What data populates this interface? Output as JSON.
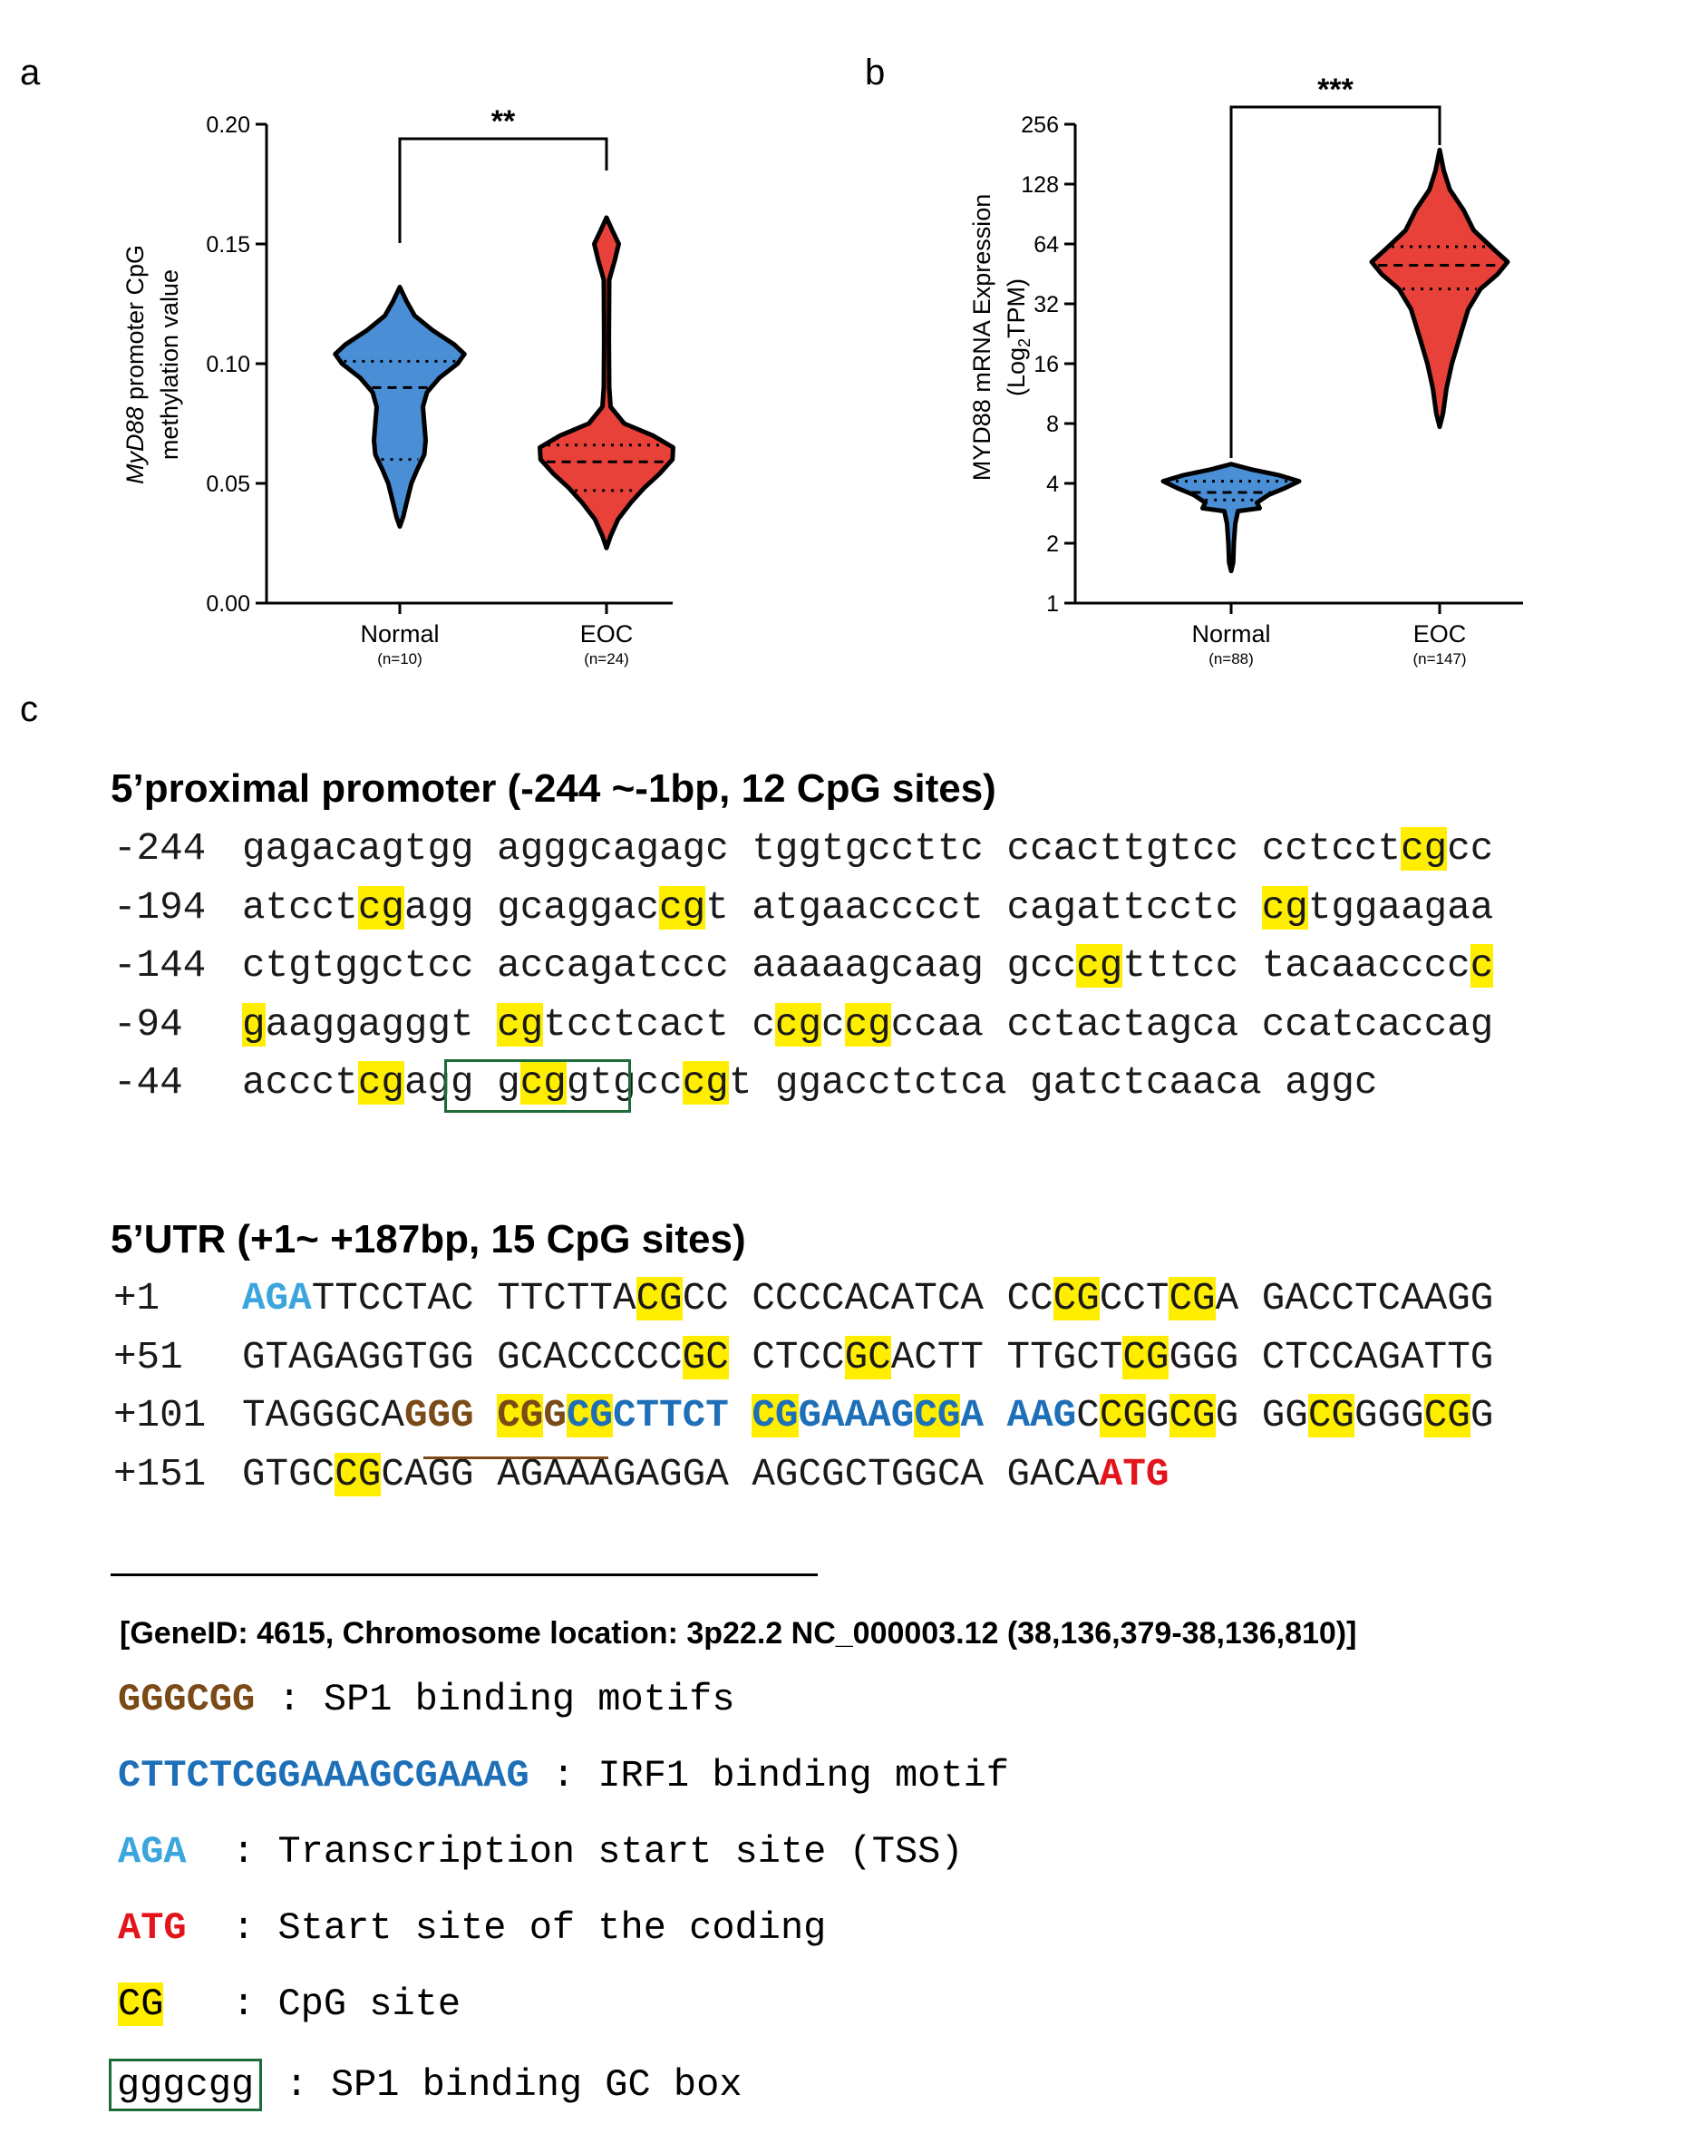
{
  "panels": {
    "a": "a",
    "b": "b",
    "c": "c"
  },
  "chart_data": [
    {
      "type": "violin",
      "panel": "a",
      "ylabel_italic": "MyD88",
      "ylabel_rest": " promoter CpG",
      "ylabel_line2": "methylation value",
      "ylim": [
        0,
        0.2
      ],
      "yticks": [
        "0.00",
        "0.05",
        "0.10",
        "0.15",
        "0.20"
      ],
      "ytick_values": [
        0,
        0.05,
        0.1,
        0.15,
        0.2
      ],
      "categories": [
        "Normal",
        "EOC"
      ],
      "n_labels": [
        "(n=10)",
        "(n=24)"
      ],
      "colors": [
        "#4a8fd6",
        "#e8413a"
      ],
      "series": [
        {
          "name": "Normal",
          "min": 0.032,
          "max": 0.132,
          "median": 0.09,
          "q1": 0.06,
          "q3": 0.101,
          "profile": [
            [
              0.032,
              0.0
            ],
            [
              0.036,
              0.05
            ],
            [
              0.042,
              0.1
            ],
            [
              0.05,
              0.17
            ],
            [
              0.056,
              0.26
            ],
            [
              0.062,
              0.36
            ],
            [
              0.068,
              0.38
            ],
            [
              0.075,
              0.36
            ],
            [
              0.082,
              0.34
            ],
            [
              0.088,
              0.4
            ],
            [
              0.094,
              0.58
            ],
            [
              0.1,
              0.85
            ],
            [
              0.104,
              0.95
            ],
            [
              0.108,
              0.8
            ],
            [
              0.114,
              0.48
            ],
            [
              0.12,
              0.22
            ],
            [
              0.126,
              0.1
            ],
            [
              0.132,
              0.0
            ]
          ]
        },
        {
          "name": "EOC",
          "min": 0.023,
          "max": 0.161,
          "median": 0.059,
          "q1": 0.047,
          "q3": 0.066,
          "profile": [
            [
              0.023,
              0.0
            ],
            [
              0.028,
              0.06
            ],
            [
              0.035,
              0.17
            ],
            [
              0.042,
              0.36
            ],
            [
              0.048,
              0.55
            ],
            [
              0.054,
              0.78
            ],
            [
              0.06,
              0.97
            ],
            [
              0.065,
              0.98
            ],
            [
              0.07,
              0.68
            ],
            [
              0.075,
              0.26
            ],
            [
              0.082,
              0.06
            ],
            [
              0.09,
              0.04
            ],
            [
              0.11,
              0.035
            ],
            [
              0.135,
              0.04
            ],
            [
              0.143,
              0.12
            ],
            [
              0.15,
              0.18
            ],
            [
              0.156,
              0.08
            ],
            [
              0.161,
              0.0
            ]
          ]
        }
      ],
      "significance": "**"
    },
    {
      "type": "violin",
      "panel": "b",
      "ylabel_line1": "MYD88 mRNA Expression",
      "ylabel_log": "(Log",
      "ylabel_sub": "2",
      "ylabel_tail": "TPM)",
      "scale": "log2",
      "ylim": [
        1,
        256
      ],
      "yticks": [
        "1",
        "2",
        "4",
        "8",
        "16",
        "32",
        "64",
        "128",
        "256"
      ],
      "ytick_values": [
        1,
        2,
        4,
        8,
        16,
        32,
        64,
        128,
        256
      ],
      "categories": [
        "Normal",
        "EOC"
      ],
      "n_labels": [
        "(n=88)",
        "(n=147)"
      ],
      "colors": [
        "#4a8fd6",
        "#e8413a"
      ],
      "series": [
        {
          "name": "Normal",
          "min": 1.45,
          "max": 5.0,
          "median": 3.6,
          "q1": 3.3,
          "q3": 4.1,
          "profile": [
            [
              1.45,
              0.0
            ],
            [
              1.6,
              0.03
            ],
            [
              2.0,
              0.04
            ],
            [
              2.5,
              0.06
            ],
            [
              2.9,
              0.1
            ],
            [
              3.0,
              0.42
            ],
            [
              3.2,
              0.38
            ],
            [
              3.5,
              0.55
            ],
            [
              3.8,
              0.8
            ],
            [
              4.1,
              1.0
            ],
            [
              4.4,
              0.7
            ],
            [
              4.7,
              0.3
            ],
            [
              5.0,
              0.0
            ]
          ]
        },
        {
          "name": "EOC",
          "min": 7.7,
          "max": 190,
          "median": 50,
          "q1": 38,
          "q3": 62,
          "profile": [
            [
              7.7,
              0.0
            ],
            [
              9,
              0.05
            ],
            [
              12,
              0.1
            ],
            [
              16,
              0.18
            ],
            [
              22,
              0.3
            ],
            [
              30,
              0.42
            ],
            [
              38,
              0.6
            ],
            [
              45,
              0.85
            ],
            [
              52,
              1.0
            ],
            [
              60,
              0.8
            ],
            [
              75,
              0.5
            ],
            [
              95,
              0.35
            ],
            [
              120,
              0.15
            ],
            [
              150,
              0.06
            ],
            [
              190,
              0.0
            ]
          ]
        }
      ],
      "significance": "***"
    }
  ],
  "promoter": {
    "title": "5’proximal promoter (-244 ~-1bp, 12 CpG sites)",
    "rows": [
      {
        "pos": "-244",
        "blocks": [
          [
            [
              "gagacagtgg",
              ""
            ]
          ],
          [
            [
              "agggcagagc",
              ""
            ]
          ],
          [
            [
              "tggtgccttc",
              ""
            ]
          ],
          [
            [
              "ccacttgtcc",
              ""
            ]
          ],
          [
            [
              "cctcct",
              ""
            ],
            [
              "cg",
              "hl"
            ],
            [
              "cc",
              ""
            ]
          ]
        ]
      },
      {
        "pos": "-194",
        "blocks": [
          [
            [
              "atcct",
              ""
            ],
            [
              "cg",
              "hl"
            ],
            [
              "agg",
              ""
            ]
          ],
          [
            [
              "gcaggac",
              ""
            ],
            [
              "cg",
              "hl"
            ],
            [
              "t",
              ""
            ]
          ],
          [
            [
              "atgaacccct",
              ""
            ]
          ],
          [
            [
              "cagattcctc",
              ""
            ]
          ],
          [
            [
              "cg",
              "hl"
            ],
            [
              "tggaagaa",
              ""
            ]
          ]
        ]
      },
      {
        "pos": "-144",
        "blocks": [
          [
            [
              "ctgtggctcc",
              ""
            ]
          ],
          [
            [
              "accagatccc",
              ""
            ]
          ],
          [
            [
              "aaaaagcaag",
              ""
            ]
          ],
          [
            [
              "gcc",
              ""
            ],
            [
              "cg",
              "hl"
            ],
            [
              "tttcc",
              ""
            ]
          ],
          [
            [
              "tacaacccc",
              ""
            ],
            [
              "c",
              "hl"
            ]
          ]
        ]
      },
      {
        "pos": "-94",
        "blocks": [
          [
            [
              "g",
              "hl"
            ],
            [
              "aaggagggt",
              ""
            ]
          ],
          [
            [
              "cg",
              "hl"
            ],
            [
              "tcctcact",
              ""
            ]
          ],
          [
            [
              "c",
              ""
            ],
            [
              "cg",
              "hl"
            ],
            [
              "c",
              ""
            ],
            [
              "cg",
              "hl"
            ],
            [
              "ccaa",
              ""
            ]
          ],
          [
            [
              "cctactagca",
              ""
            ]
          ],
          [
            [
              "ccatcaccag",
              ""
            ]
          ]
        ]
      },
      {
        "pos": "-44",
        "blocks": [
          [
            [
              "accct",
              ""
            ],
            [
              "cg",
              "hl"
            ],
            [
              "agg",
              ""
            ]
          ],
          [
            [
              "g",
              ""
            ],
            [
              "cg",
              "hl"
            ],
            [
              "gtgcc",
              ""
            ],
            [
              "cg",
              "hl"
            ],
            [
              "t",
              ""
            ]
          ],
          [
            [
              "ggacctctca",
              ""
            ]
          ],
          [
            [
              "gatctcaaca",
              ""
            ]
          ],
          [
            [
              "aggc",
              ""
            ]
          ]
        ]
      }
    ]
  },
  "utr": {
    "title": "5’UTR (+1~ +187bp, 15 CpG sites)",
    "rows": [
      {
        "pos": "+1",
        "blocks": [
          [
            [
              "AGA",
              "tss"
            ],
            [
              "TTCCTAC",
              ""
            ]
          ],
          [
            [
              "TTCTTA",
              ""
            ],
            [
              "CG",
              "hl"
            ],
            [
              "CC",
              ""
            ]
          ],
          [
            [
              "CCCCACATCA",
              ""
            ]
          ],
          [
            [
              "CC",
              ""
            ],
            [
              "CG",
              "hl"
            ],
            [
              "CCT",
              ""
            ],
            [
              "CG",
              "hl"
            ],
            [
              "A",
              ""
            ]
          ],
          [
            [
              "GACCTCAAGG",
              ""
            ]
          ]
        ]
      },
      {
        "pos": "+51",
        "blocks": [
          [
            [
              "GTAGAGGTGG",
              ""
            ]
          ],
          [
            [
              "GCACCCCC",
              ""
            ],
            [
              "GC",
              "hl"
            ]
          ],
          [
            [
              "CTCC",
              ""
            ],
            [
              "GC",
              "hl"
            ],
            [
              "ACTT",
              ""
            ]
          ],
          [
            [
              "TTGCT",
              ""
            ],
            [
              "CG",
              "hl"
            ],
            [
              "GGG",
              ""
            ]
          ],
          [
            [
              "CTCCAGATTG",
              ""
            ]
          ]
        ]
      },
      {
        "pos": "+101",
        "blocks": [
          [
            [
              "TAGGGCA",
              ""
            ],
            [
              "GGG",
              "sp1"
            ]
          ],
          [
            [
              "CG",
              "sp1 hl"
            ],
            [
              "G",
              "sp1"
            ],
            [
              "CG",
              "hl b irf"
            ],
            [
              "CTTCT",
              "irf"
            ]
          ],
          [
            [
              "CG",
              "irf hl"
            ],
            [
              "GAAAG",
              "irf"
            ],
            [
              "CG",
              "irf hl"
            ],
            [
              "A",
              "irf"
            ]
          ],
          [
            [
              "AAG",
              "irf"
            ],
            [
              "C",
              ""
            ],
            [
              "CG",
              "hl"
            ],
            [
              "G",
              ""
            ],
            [
              "CG",
              "hl"
            ],
            [
              "G",
              ""
            ]
          ],
          [
            [
              "GG",
              ""
            ],
            [
              "CG",
              "hl"
            ],
            [
              "GGG",
              ""
            ],
            [
              "CG",
              "hl"
            ],
            [
              "G",
              ""
            ]
          ]
        ]
      },
      {
        "pos": "+151",
        "blocks": [
          [
            [
              "GTGC",
              ""
            ],
            [
              "CG",
              "hl"
            ],
            [
              "CAGG",
              ""
            ]
          ],
          [
            [
              "AGAAAGAGGA",
              ""
            ]
          ],
          [
            [
              "AGCGCTGGCA",
              ""
            ]
          ],
          [
            [
              "GACA",
              ""
            ],
            [
              "ATG",
              "atg"
            ]
          ]
        ]
      }
    ]
  },
  "footer": {
    "gene_info": "[GeneID: 4615, Chromosome location: 3p22.2 NC_000003.12 (38,136,379-38,136,810)]"
  },
  "legend": [
    {
      "key": "GGGCGG",
      "style": "sp1",
      "sep": " : ",
      "desc": "SP1 binding motifs"
    },
    {
      "key": "CTTCTCGGAAAGCGAAAG",
      "style": "irf",
      "sep": " : ",
      "desc": "IRF1 binding motif"
    },
    {
      "key": "AGA",
      "style": "tss",
      "sep": "  : ",
      "desc": "Transcription start site (TSS)"
    },
    {
      "key": "ATG",
      "style": "atg",
      "sep": "  : ",
      "desc": "Start site of the coding"
    },
    {
      "key": "CG",
      "style": "hl",
      "sep": "   : ",
      "desc": "CpG site"
    },
    {
      "key": "gggcgg",
      "style": "box",
      "sep": " : ",
      "desc": "SP1 binding GC box"
    }
  ]
}
